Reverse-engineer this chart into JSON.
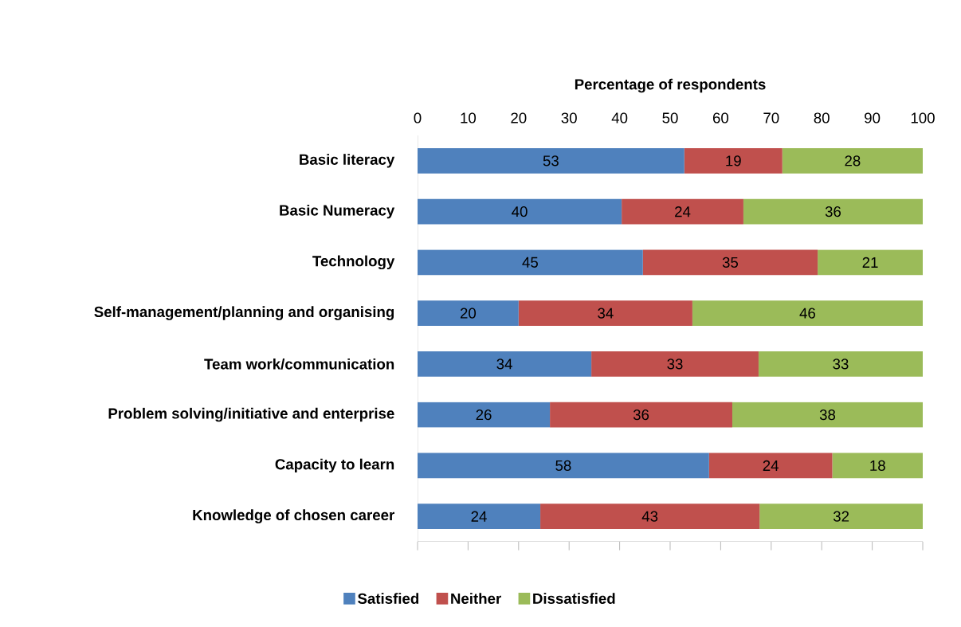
{
  "chart_data": {
    "type": "bar",
    "orientation": "horizontal",
    "stacked": true,
    "xlabel": "Percentage of respondents",
    "categories": [
      "Basic literacy",
      "Basic Numeracy",
      "Technology",
      "Self-management/planning and organising",
      "Team work/communication",
      "Problem solving/initiative and enterprise",
      "Capacity to learn",
      "Knowledge of chosen career"
    ],
    "series": [
      {
        "name": "Satisfied",
        "color": "#4f81bd",
        "values": [
          52.8,
          40.4,
          44.6,
          20.0,
          34.4,
          26.2,
          57.7,
          24.3
        ],
        "value_labels": [
          "53",
          "40",
          "45",
          "20",
          "34",
          "26",
          "58",
          "24"
        ]
      },
      {
        "name": "Neither",
        "color": "#c0504d",
        "values": [
          19.4,
          24.1,
          34.6,
          34.4,
          33.1,
          36.1,
          24.4,
          43.4
        ],
        "value_labels": [
          "19",
          "24",
          "35",
          "34",
          "33",
          "36",
          "24",
          "43"
        ]
      },
      {
        "name": "Dissatisfied",
        "color": "#9bbb59",
        "values": [
          27.8,
          35.5,
          20.8,
          45.6,
          32.5,
          37.7,
          17.9,
          32.3
        ],
        "value_labels": [
          "28",
          "36",
          "21",
          "46",
          "33",
          "38",
          "18",
          "32"
        ]
      }
    ],
    "xlim": [
      0,
      100
    ],
    "xticks": [
      0,
      10,
      20,
      30,
      40,
      50,
      60,
      70,
      80,
      90,
      100
    ],
    "legend": "bottom",
    "grid": false
  }
}
